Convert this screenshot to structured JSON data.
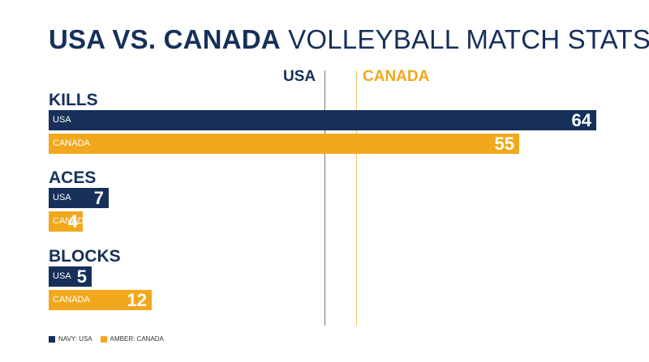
{
  "title": {
    "bold": "USA VS. CANADA",
    "rest": "VOLLEYBALL MATCH STATS"
  },
  "columns": {
    "usa": "USA",
    "canada": "CANADA"
  },
  "colors": {
    "usa": "#16305a",
    "canada": "#f2a81d"
  },
  "legend": {
    "usa": "NAVY: USA",
    "canada": "AMBER: CANADA"
  },
  "chart_data": {
    "type": "bar",
    "orientation": "horizontal",
    "categories": [
      "KILLS",
      "ACES",
      "BLOCKS"
    ],
    "series": [
      {
        "name": "USA",
        "values": [
          64,
          7,
          5
        ]
      },
      {
        "name": "CANADA",
        "values": [
          55,
          4,
          12
        ]
      }
    ],
    "xlim": [
      0,
      66
    ],
    "grid": false,
    "legend_position": "bottom-left"
  }
}
